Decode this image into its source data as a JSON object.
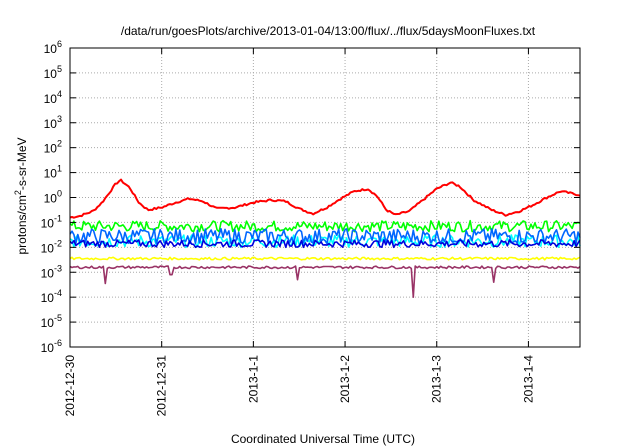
{
  "chart_data": {
    "type": "line",
    "title": "/data/run/goesPlots/archive/2013-01-04/13:00/flux/../flux/5daysMoonFluxes.txt",
    "xlabel": "Coordinated Universal Time (UTC)",
    "ylabel": {
      "pre": "protons/cm",
      "sup": "2",
      "post": "-s-sr-MeV"
    },
    "y_scale": "log",
    "y_exponent_range": [
      -6,
      6
    ],
    "y_tick_exponents": [
      6,
      5,
      4,
      3,
      2,
      1,
      0,
      -1,
      -2,
      -3,
      -4,
      -5,
      -6
    ],
    "y_tick_base": "10",
    "x_range_days": [
      "2012-12-30 00:00",
      "2013-01-04 13:30"
    ],
    "x_ticks": [
      "2012-12-30",
      "2012-12-31",
      "2013-1-1",
      "2013-1-2",
      "2013-1-3",
      "2013-1-4"
    ],
    "grid": true,
    "legend": "none",
    "series": [
      {
        "color": "#ff0000",
        "kind": "red",
        "log10_points": [
          [
            0,
            -0.8
          ],
          [
            0.1,
            -0.75
          ],
          [
            0.25,
            -0.55
          ],
          [
            0.35,
            -0.2
          ],
          [
            0.5,
            0.55
          ],
          [
            0.55,
            0.7
          ],
          [
            0.65,
            0.4
          ],
          [
            0.75,
            -0.2
          ],
          [
            0.85,
            -0.5
          ],
          [
            1.0,
            -0.4
          ],
          [
            1.15,
            -0.2
          ],
          [
            1.3,
            -0.05
          ],
          [
            1.45,
            -0.15
          ],
          [
            1.6,
            -0.45
          ],
          [
            1.8,
            -0.4
          ],
          [
            2.0,
            -0.2
          ],
          [
            2.2,
            -0.1
          ],
          [
            2.35,
            -0.15
          ],
          [
            2.5,
            -0.45
          ],
          [
            2.65,
            -0.65
          ],
          [
            2.8,
            -0.4
          ],
          [
            2.95,
            -0.05
          ],
          [
            3.1,
            0.25
          ],
          [
            3.25,
            0.35
          ],
          [
            3.35,
            0.05
          ],
          [
            3.45,
            -0.5
          ],
          [
            3.55,
            -0.7
          ],
          [
            3.7,
            -0.55
          ],
          [
            3.85,
            -0.1
          ],
          [
            4.0,
            0.35
          ],
          [
            4.15,
            0.6
          ],
          [
            4.25,
            0.45
          ],
          [
            4.4,
            -0.1
          ],
          [
            4.6,
            -0.5
          ],
          [
            4.75,
            -0.7
          ],
          [
            4.9,
            -0.55
          ],
          [
            5.05,
            -0.3
          ],
          [
            5.2,
            0.0
          ],
          [
            5.35,
            0.25
          ],
          [
            5.56,
            0.1
          ]
        ]
      },
      {
        "color": "#00ff00",
        "kind": "green",
        "base_log10": -1.15,
        "noise": 0.22
      },
      {
        "color": "#00ffff",
        "kind": "cyan",
        "base_log10": -1.75,
        "noise": 0.25
      },
      {
        "color": "#0066ff",
        "kind": "blue",
        "base_log10": -1.55,
        "noise": 0.3
      },
      {
        "color": "#0000dd",
        "kind": "darkblue",
        "base_log10": -1.85,
        "noise": 0.15
      },
      {
        "color": "#ffff00",
        "kind": "yellow",
        "base_log10": -2.45,
        "noise": 0.05
      },
      {
        "color": "#993366",
        "kind": "purple",
        "base_log10": -2.8,
        "noise": 0.05,
        "dips_days": [
          [
            0.38,
            -3.45
          ],
          [
            1.1,
            -3.1
          ],
          [
            2.48,
            -3.3
          ],
          [
            3.74,
            -4.0
          ],
          [
            4.62,
            -3.4
          ]
        ]
      }
    ]
  }
}
